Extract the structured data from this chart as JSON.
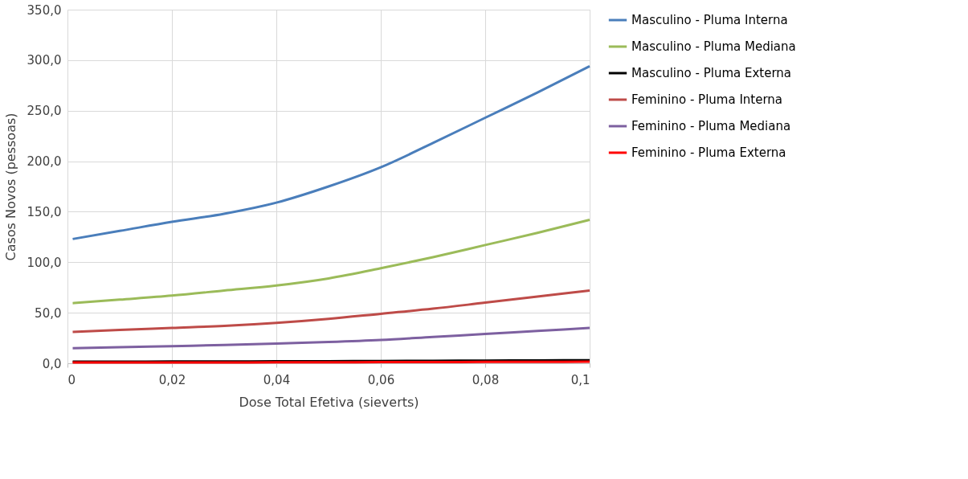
{
  "chart_data": {
    "type": "line",
    "xlabel": "Dose Total Efetiva (sieverts)",
    "ylabel": "Casos Novos (pessoas)",
    "x": [
      0.001,
      0.01,
      0.02,
      0.03,
      0.04,
      0.05,
      0.06,
      0.07,
      0.08,
      0.09,
      0.1
    ],
    "series": [
      {
        "name": "Masculino - Pluma Interna",
        "color": "#4a7ebb",
        "values": [
          123,
          131,
          140,
          148,
          159,
          175,
          194,
          218,
          243,
          268,
          294
        ]
      },
      {
        "name": "Masculino - Pluma Mediana",
        "color": "#9bbb59",
        "values": [
          59.5,
          63,
          67,
          72,
          77,
          84,
          94,
          105,
          117,
          129,
          142
        ]
      },
      {
        "name": "Masculino - Pluma Externa",
        "color": "#000000",
        "values": [
          1.5,
          1.6,
          1.7,
          1.8,
          1.9,
          2,
          2.2,
          2.4,
          2.6,
          2.8,
          3
        ]
      },
      {
        "name": "Feminino - Pluma Interna",
        "color": "#be4b48",
        "values": [
          31,
          33,
          35,
          37,
          40,
          44,
          49,
          54,
          60,
          66,
          72
        ]
      },
      {
        "name": "Feminino - Pluma Mediana",
        "color": "#7d60a0",
        "values": [
          15,
          16,
          17,
          18,
          19.5,
          21,
          23,
          26,
          29,
          32,
          35
        ]
      },
      {
        "name": "Feminino - Pluma Externa",
        "color": "#ff0000",
        "values": [
          0.7,
          0.7,
          0.8,
          0.8,
          0.9,
          1,
          1.1,
          1.2,
          1.3,
          1.4,
          1.5
        ]
      }
    ],
    "xlim": [
      0,
      0.1
    ],
    "xticks": [
      {
        "value": 0,
        "label": "0"
      },
      {
        "value": 0.02,
        "label": "0,02"
      },
      {
        "value": 0.04,
        "label": "0,04"
      },
      {
        "value": 0.06,
        "label": "0,06"
      },
      {
        "value": 0.08,
        "label": "0,08"
      },
      {
        "value": 0.1,
        "label": "0,1"
      }
    ],
    "ylim": [
      0,
      350
    ],
    "yticks": [
      {
        "value": 0,
        "label": "0,0"
      },
      {
        "value": 50,
        "label": "50,0"
      },
      {
        "value": 100,
        "label": "100,0"
      },
      {
        "value": 150,
        "label": "150,0"
      },
      {
        "value": 200,
        "label": "200,0"
      },
      {
        "value": 250,
        "label": "250,0"
      },
      {
        "value": 300,
        "label": "300,0"
      },
      {
        "value": 350,
        "label": "350,0"
      }
    ],
    "grid": true,
    "legend": "right",
    "marker": "none",
    "line_style": "solid"
  }
}
